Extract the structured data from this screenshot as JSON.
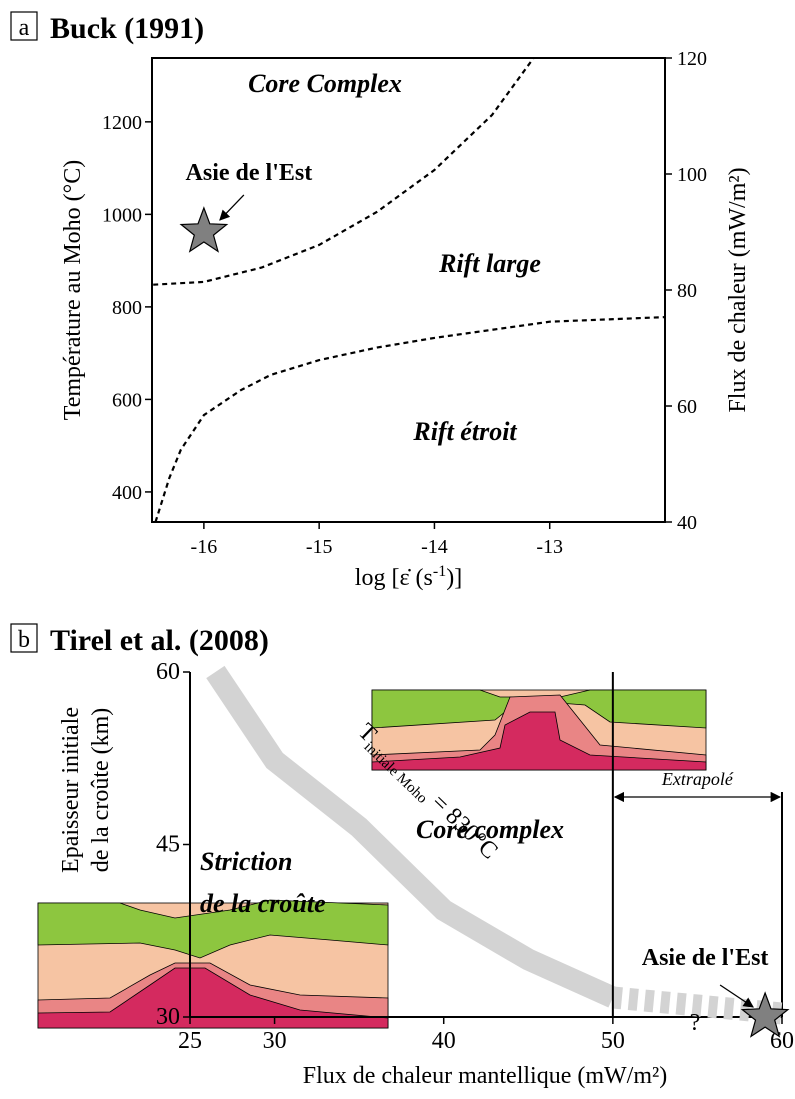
{
  "chart_data": [
    {
      "type": "line",
      "panel": "a",
      "title": "Buck (1991)",
      "xlabel": [
        "log [ε̇ (s",
        "-1",
        ")]"
      ],
      "ylabel": "Température au Moho (°C)",
      "y2label": "Flux de chaleur (mW/m²)",
      "xlim": [
        -16.45,
        -12
      ],
      "xticks": [
        -16,
        -15,
        -14,
        -13
      ],
      "ylim": [
        335,
        1338
      ],
      "yticks": [
        400,
        600,
        800,
        1000,
        1200
      ],
      "y2lim": [
        40,
        120
      ],
      "y2ticks": [
        40,
        60,
        80,
        100,
        120
      ],
      "series": [
        {
          "color": "#000000",
          "dashed": true,
          "x": [
            -16.44,
            -16,
            -15.5,
            -15,
            -14.5,
            -14,
            -13.5,
            -13.14
          ],
          "values": [
            848,
            854,
            885,
            934,
            1005,
            1096,
            1215,
            1338
          ]
        },
        {
          "color": "#000000",
          "dashed": true,
          "x": [
            -16.42,
            -16.3,
            -16.2,
            -16,
            -15.68,
            -15.42,
            -15,
            -14.5,
            -14,
            -13,
            -12
          ],
          "values": [
            335,
            430,
            491,
            566,
            620,
            653,
            685,
            712,
            733,
            768,
            778
          ]
        }
      ],
      "points": [
        {
          "label": "Asie de l'Est",
          "x": -16,
          "y": 962,
          "color": "#808080"
        }
      ],
      "annotations": [
        "Core Complex",
        "Rift large",
        "Rift étroit"
      ]
    },
    {
      "type": "line",
      "panel": "b",
      "title": "Tirel et al. (2008)",
      "xlabel": "Flux de chaleur mantellique (mW/m²)",
      "ylabel": [
        "Epaisseur initiale",
        "de la croûte (km)"
      ],
      "xlim": [
        25,
        60
      ],
      "xticks": [
        25,
        30,
        40,
        50,
        60
      ],
      "ylim": [
        30,
        60
      ],
      "yticks": [
        30,
        45,
        60
      ],
      "series": [
        {
          "color": "#d3d3d3",
          "dashed": false,
          "x": [
            26.5,
            30,
            35,
            40,
            45,
            50
          ],
          "values": [
            60,
            52.3,
            46.5,
            39.3,
            35,
            31.7
          ]
        },
        {
          "color": "#d3d3d3",
          "dashed": true,
          "x": [
            50,
            55,
            60
          ],
          "values": [
            31.7,
            31,
            30.3
          ]
        }
      ],
      "band_label": [
        "T",
        "initiale Moho",
        "= 830°C"
      ],
      "extrapolation": {
        "start": 50,
        "label": "Extrapolé"
      },
      "points": [
        {
          "label": "Asie de l'Est",
          "x": 59,
          "y": 30,
          "color": "#808080"
        }
      ],
      "annotations": [
        "Core complex",
        "Striction",
        "de la croûte",
        "?"
      ]
    }
  ]
}
